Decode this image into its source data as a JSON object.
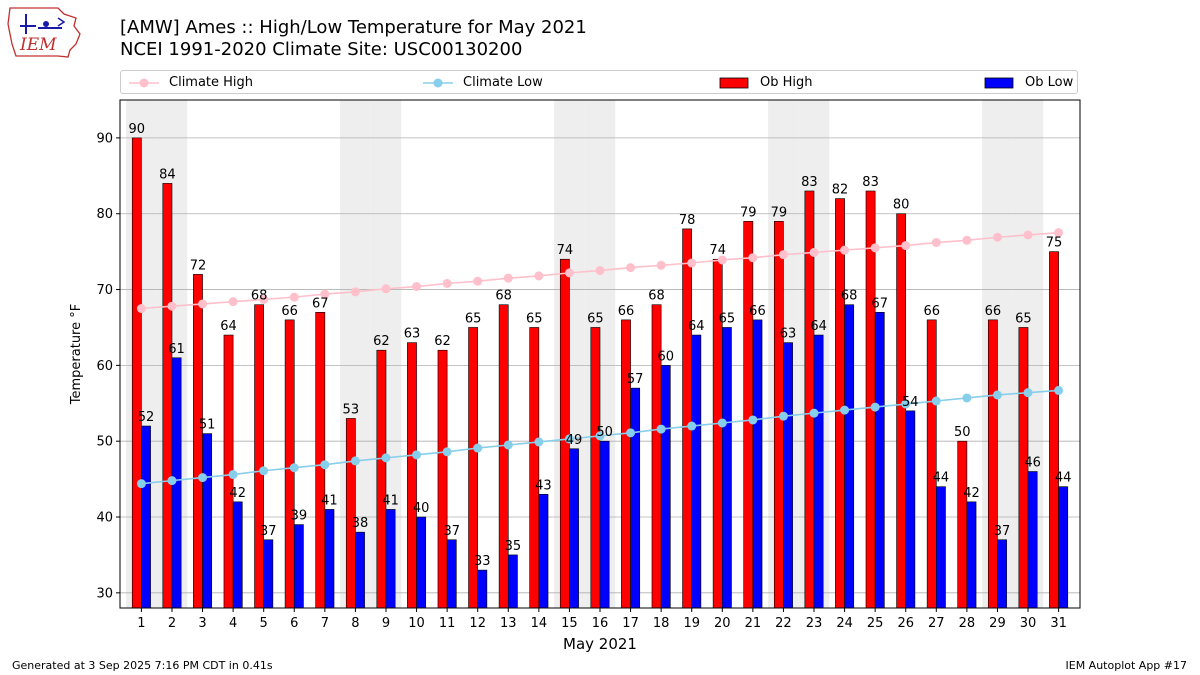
{
  "header": {
    "title_line1": "[AMW] Ames :: High/Low Temperature for May 2021",
    "title_line2": "NCEI 1991-2020 Climate Site: USC00130200",
    "logo_text": "IEM"
  },
  "footer": {
    "generated": "Generated at 3 Sep 2025 7:16 PM CDT in 0.41s",
    "app": "IEM Autoplot App #17"
  },
  "colors": {
    "ob_high": "#ff0000",
    "ob_low": "#0000ff",
    "climate_high": "#ffc0cb",
    "climate_low": "#87ceeb",
    "weekend_band": "#eeeeee",
    "grid": "#b0b0b0"
  },
  "chart_data": {
    "type": "bar",
    "title": "[AMW] Ames :: High/Low Temperature for May 2021",
    "subtitle": "NCEI 1991-2020 Climate Site: USC00130200",
    "xlabel": "May 2021",
    "ylabel": "Temperature °F",
    "ylim": [
      28,
      95
    ],
    "yticks": [
      30,
      40,
      50,
      60,
      70,
      80,
      90
    ],
    "grid": true,
    "legend_position": "top",
    "shaded_days": [
      1,
      2,
      8,
      9,
      15,
      16,
      22,
      23,
      29,
      30
    ],
    "categories": [
      "1",
      "2",
      "3",
      "4",
      "5",
      "6",
      "7",
      "8",
      "9",
      "10",
      "11",
      "12",
      "13",
      "14",
      "15",
      "16",
      "17",
      "18",
      "19",
      "20",
      "21",
      "22",
      "23",
      "24",
      "25",
      "26",
      "27",
      "28",
      "29",
      "30",
      "31"
    ],
    "series": [
      {
        "name": "Ob High",
        "kind": "bar",
        "values": [
          90,
          84,
          72,
          64,
          68,
          66,
          67,
          53,
          62,
          63,
          62,
          65,
          68,
          65,
          74,
          65,
          66,
          68,
          78,
          74,
          79,
          79,
          83,
          82,
          83,
          80,
          66,
          50,
          66,
          65,
          75
        ]
      },
      {
        "name": "Ob Low",
        "kind": "bar",
        "values": [
          52,
          61,
          51,
          42,
          37,
          39,
          41,
          38,
          41,
          40,
          37,
          33,
          35,
          43,
          49,
          50,
          57,
          60,
          64,
          65,
          66,
          63,
          64,
          68,
          67,
          54,
          44,
          42,
          37,
          46,
          44
        ]
      },
      {
        "name": "Climate High",
        "kind": "line",
        "values": [
          67.5,
          67.8,
          68.1,
          68.4,
          68.7,
          69.0,
          69.4,
          69.7,
          70.1,
          70.4,
          70.8,
          71.1,
          71.5,
          71.8,
          72.2,
          72.5,
          72.9,
          73.2,
          73.5,
          73.9,
          74.2,
          74.6,
          74.9,
          75.2,
          75.5,
          75.8,
          76.2,
          76.5,
          76.9,
          77.2,
          77.5
        ]
      },
      {
        "name": "Climate Low",
        "kind": "line",
        "values": [
          44.4,
          44.8,
          45.2,
          45.6,
          46.1,
          46.5,
          46.9,
          47.4,
          47.8,
          48.2,
          48.6,
          49.1,
          49.5,
          49.9,
          50.3,
          50.7,
          51.1,
          51.6,
          52.0,
          52.4,
          52.8,
          53.3,
          53.7,
          54.1,
          54.5,
          54.9,
          55.3,
          55.7,
          56.1,
          56.4,
          56.7
        ]
      }
    ],
    "legend": [
      "Climate High",
      "Climate Low",
      "Ob High",
      "Ob Low"
    ]
  }
}
